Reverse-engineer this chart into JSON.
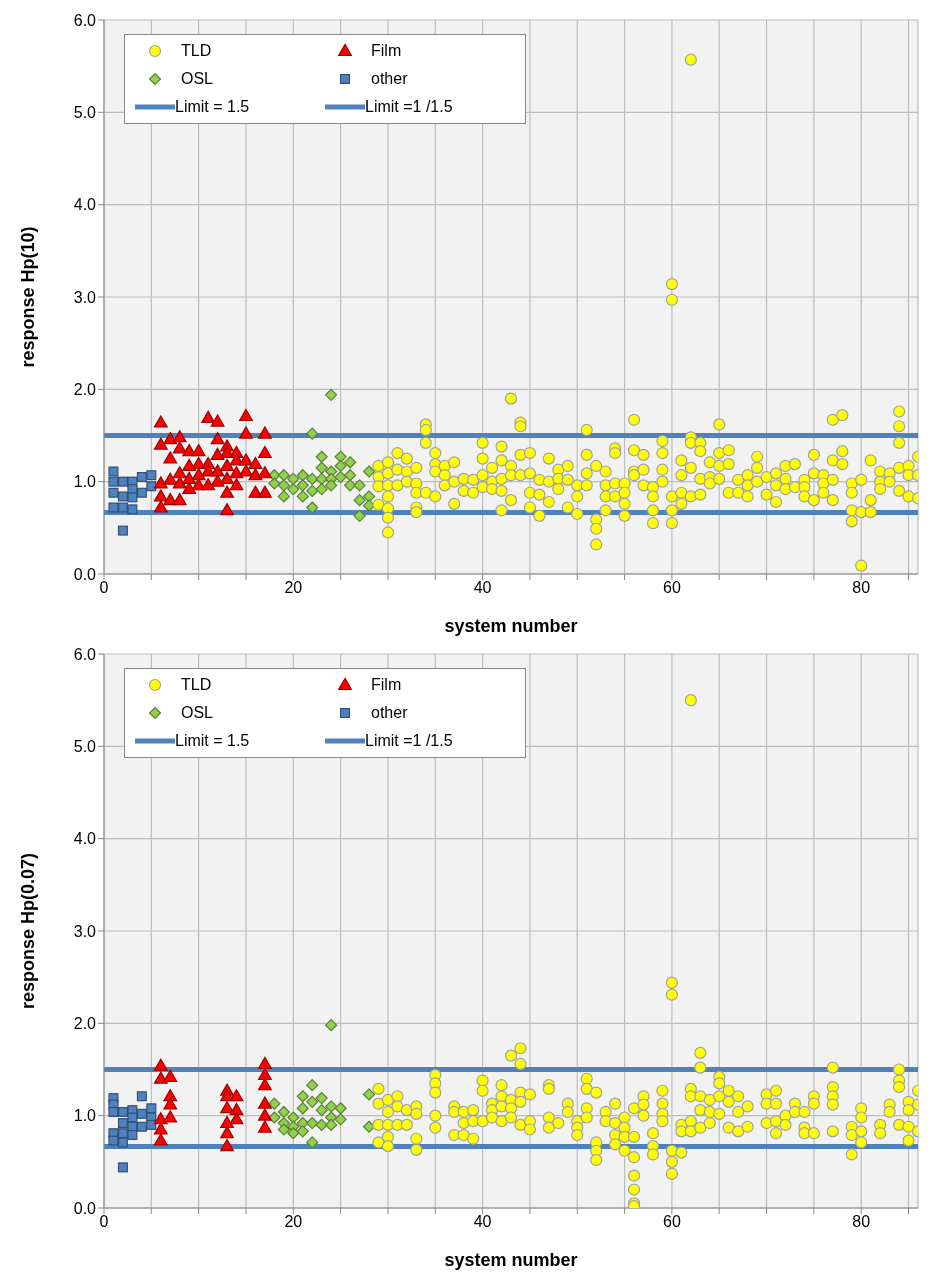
{
  "chart_data": [
    {
      "type": "scatter",
      "xlabel": "system number",
      "ylabel": "response Hp(10)",
      "xlim": [
        0,
        86
      ],
      "ylim": [
        0,
        6
      ],
      "xticks": [
        0,
        {
          "value": 5,
          "label": null
        },
        {
          "value": 10,
          "label": null
        },
        {
          "value": 15,
          "label": null
        },
        20,
        {
          "value": 25,
          "label": null
        },
        {
          "value": 30,
          "label": null
        },
        {
          "value": 35,
          "label": null
        },
        40,
        {
          "value": 45,
          "label": null
        },
        {
          "value": 50,
          "label": null
        },
        {
          "value": 55,
          "label": null
        },
        60,
        {
          "value": 65,
          "label": null
        },
        {
          "value": 70,
          "label": null
        },
        {
          "value": 75,
          "label": null
        },
        80,
        {
          "value": 85,
          "label": null
        }
      ],
      "yticks": [
        {
          "value": 0,
          "label": "0.0"
        },
        {
          "value": 1,
          "label": "1.0"
        },
        {
          "value": 2,
          "label": "2.0"
        },
        {
          "value": 3,
          "label": "3.0"
        },
        {
          "value": 4,
          "label": "4.0"
        },
        {
          "value": 5,
          "label": "5.0"
        },
        {
          "value": 6,
          "label": "6.0"
        }
      ],
      "grid": true,
      "legend": "top left",
      "ref_lines": [
        {
          "axis": "y",
          "value": 1.5,
          "label": "Limit = 1.5",
          "color": "#4f81bd"
        },
        {
          "axis": "y",
          "value": 0.667,
          "label": "Limit =1 /1.5",
          "color": "#4f81bd"
        }
      ],
      "series": [
        {
          "name": "TLD",
          "color": "#ffff00",
          "marker": "circle",
          "x": [
            29,
            29,
            29,
            29,
            30,
            30,
            30,
            30,
            30,
            30,
            30,
            31,
            31,
            31,
            32,
            32,
            32,
            33,
            33,
            33,
            33,
            33,
            34,
            34,
            34,
            34,
            35,
            35,
            35,
            35,
            36,
            36,
            36,
            37,
            37,
            37,
            38,
            38,
            39,
            39,
            40,
            40,
            40,
            40,
            41,
            41,
            41,
            42,
            42,
            42,
            42,
            42,
            43,
            43,
            43,
            43,
            44,
            44,
            44,
            44,
            45,
            45,
            45,
            45,
            46,
            46,
            46,
            47,
            47,
            47,
            48,
            48,
            48,
            49,
            49,
            49,
            50,
            50,
            50,
            51,
            51,
            51,
            51,
            52,
            52,
            52,
            52,
            53,
            53,
            53,
            53,
            54,
            54,
            54,
            54,
            55,
            55,
            55,
            55,
            56,
            56,
            56,
            56,
            57,
            57,
            57,
            58,
            58,
            58,
            58,
            59,
            59,
            59,
            59,
            60,
            60,
            60,
            60,
            60,
            61,
            61,
            61,
            61,
            62,
            62,
            62,
            62,
            62,
            63,
            63,
            63,
            63,
            64,
            64,
            64,
            65,
            65,
            65,
            65,
            66,
            66,
            66,
            67,
            67,
            68,
            68,
            68,
            69,
            69,
            69,
            70,
            70,
            71,
            71,
            71,
            72,
            72,
            72,
            73,
            73,
            74,
            74,
            74,
            75,
            75,
            75,
            76,
            76,
            76,
            77,
            77,
            77,
            77,
            78,
            78,
            78,
            79,
            79,
            79,
            79,
            80,
            80,
            80,
            81,
            81,
            81,
            82,
            82,
            82,
            83,
            83,
            84,
            84,
            84,
            84,
            84,
            85,
            85,
            85,
            86,
            86,
            86
          ],
          "values": [
            1.17,
            1.05,
            0.95,
            0.75,
            1.21,
            1.09,
            0.96,
            0.84,
            0.71,
            0.61,
            0.45,
            1.31,
            1.13,
            0.96,
            1.25,
            1.11,
            1.0,
            1.15,
            0.98,
            0.88,
            0.72,
            0.67,
            1.62,
            1.56,
            1.42,
            0.88,
            1.31,
            1.19,
            1.11,
            0.84,
            1.17,
            1.07,
            0.96,
            1.21,
            1.0,
            0.76,
            1.03,
            0.9,
            1.02,
            0.88,
            1.42,
            1.25,
            1.07,
            0.94,
            1.15,
            1.0,
            0.92,
            1.38,
            1.23,
            1.03,
            0.9,
            0.69,
            1.9,
            1.17,
            1.07,
            0.8,
            1.64,
            1.6,
            1.29,
            1.07,
            1.31,
            1.09,
            0.88,
            0.72,
            1.02,
            0.86,
            0.63,
            1.25,
            1.0,
            0.78,
            1.13,
            1.03,
            0.92,
            1.17,
            1.02,
            0.72,
            0.96,
            0.84,
            0.65,
            1.56,
            1.29,
            1.09,
            0.96,
            1.17,
            0.59,
            0.49,
            0.32,
            1.11,
            0.96,
            0.84,
            0.69,
            1.36,
            1.31,
            0.98,
            0.84,
            0.98,
            0.88,
            0.76,
            0.63,
            1.67,
            1.34,
            1.11,
            1.07,
            1.29,
            1.13,
            0.96,
            0.94,
            0.84,
            0.69,
            0.55,
            1.44,
            1.31,
            1.13,
            1.0,
            3.14,
            2.97,
            0.84,
            0.69,
            0.55,
            1.23,
            1.07,
            0.88,
            0.76,
            5.57,
            1.48,
            1.42,
            1.15,
            0.84,
            1.42,
            1.33,
            1.03,
            0.86,
            1.21,
            1.05,
            0.98,
            1.62,
            1.31,
            1.17,
            1.03,
            1.34,
            1.19,
            0.88,
            1.02,
            0.88,
            1.07,
            0.96,
            0.84,
            1.27,
            1.15,
            1.0,
            1.05,
            0.86,
            1.09,
            0.96,
            0.78,
            1.17,
            1.03,
            0.92,
            1.19,
            0.94,
            1.02,
            0.94,
            0.84,
            1.29,
            1.09,
            0.8,
            1.07,
            0.98,
            0.88,
            1.67,
            1.23,
            1.02,
            0.8,
            1.72,
            1.33,
            1.19,
            0.98,
            0.88,
            0.69,
            0.57,
            1.02,
            0.67,
            0.09,
            1.23,
            0.8,
            0.67,
            1.11,
            1.0,
            0.92,
            1.09,
            1.0,
            1.76,
            1.6,
            1.42,
            1.15,
            0.9,
            1.17,
            1.07,
            0.84,
            1.27,
            1.07,
            0.82
          ]
        },
        {
          "name": "Film",
          "color": "#ff0000",
          "marker": "triangle",
          "x": [
            6,
            6,
            6,
            6,
            6,
            7,
            7,
            7,
            7,
            8,
            8,
            8,
            8,
            8,
            9,
            9,
            9,
            9,
            10,
            10,
            10,
            10,
            11,
            11,
            11,
            11,
            12,
            12,
            12,
            12,
            12,
            13,
            13,
            13,
            13,
            13,
            13,
            14,
            14,
            14,
            14,
            15,
            15,
            15,
            15,
            16,
            16,
            16,
            17,
            17,
            17,
            17
          ],
          "values": [
            1.64,
            1.4,
            0.98,
            0.84,
            0.72,
            1.46,
            1.25,
            1.02,
            0.8,
            1.48,
            1.36,
            1.09,
            0.98,
            0.8,
            1.33,
            1.17,
            1.03,
            0.92,
            1.33,
            1.19,
            1.07,
            0.96,
            1.69,
            1.19,
            1.11,
            0.96,
            1.65,
            1.46,
            1.29,
            1.11,
            1.0,
            1.38,
            1.31,
            1.17,
            1.03,
            0.88,
            0.69,
            1.31,
            1.23,
            1.09,
            0.96,
            1.71,
            1.52,
            1.23,
            1.11,
            1.19,
            1.07,
            0.88,
            1.52,
            1.31,
            1.09,
            0.88
          ]
        },
        {
          "name": "OSL",
          "color": "#92d050",
          "marker": "diamond",
          "x": [
            18,
            18,
            19,
            19,
            19,
            20,
            20,
            21,
            21,
            21,
            22,
            22,
            22,
            22,
            23,
            23,
            23,
            23,
            24,
            24,
            24,
            24,
            25,
            25,
            25,
            26,
            26,
            26,
            27,
            27,
            27,
            28,
            28,
            28
          ],
          "values": [
            1.07,
            0.98,
            1.07,
            0.96,
            0.84,
            1.03,
            0.92,
            1.07,
            0.96,
            0.84,
            1.52,
            1.03,
            0.9,
            0.72,
            1.27,
            1.15,
            1.03,
            0.92,
            1.94,
            1.11,
            1.03,
            0.96,
            1.27,
            1.17,
            1.05,
            1.21,
            1.07,
            0.96,
            0.96,
            0.8,
            0.63,
            1.11,
            0.84,
            0.74
          ]
        },
        {
          "name": "other",
          "color": "#4f81bd",
          "marker": "square",
          "x": [
            1,
            1,
            1,
            1,
            2,
            2,
            2,
            2,
            3,
            3,
            3,
            3,
            4,
            4,
            5,
            5
          ],
          "values": [
            1.11,
            1.0,
            0.88,
            0.72,
            1.0,
            0.84,
            0.72,
            0.47,
            1.0,
            0.92,
            0.83,
            0.7,
            1.05,
            0.88,
            1.07,
            0.95
          ]
        }
      ]
    },
    {
      "type": "scatter",
      "xlabel": "system number",
      "ylabel": "response Hp(0.07)",
      "xlim": [
        0,
        86
      ],
      "ylim": [
        0,
        6
      ],
      "xticks": [
        0,
        {
          "value": 5,
          "label": null
        },
        {
          "value": 10,
          "label": null
        },
        {
          "value": 15,
          "label": null
        },
        20,
        {
          "value": 25,
          "label": null
        },
        {
          "value": 30,
          "label": null
        },
        {
          "value": 35,
          "label": null
        },
        40,
        {
          "value": 45,
          "label": null
        },
        {
          "value": 50,
          "label": null
        },
        {
          "value": 55,
          "label": null
        },
        60,
        {
          "value": 65,
          "label": null
        },
        {
          "value": 70,
          "label": null
        },
        {
          "value": 75,
          "label": null
        },
        80,
        {
          "value": 85,
          "label": null
        }
      ],
      "yticks": [
        {
          "value": 0,
          "label": "0.0"
        },
        {
          "value": 1,
          "label": "1.0"
        },
        {
          "value": 2,
          "label": "2.0"
        },
        {
          "value": 3,
          "label": "3.0"
        },
        {
          "value": 4,
          "label": "4.0"
        },
        {
          "value": 5,
          "label": "5.0"
        },
        {
          "value": 6,
          "label": "6.0"
        }
      ],
      "grid": true,
      "legend": "top left",
      "ref_lines": [
        {
          "axis": "y",
          "value": 1.5,
          "label": "Limit = 1.5",
          "color": "#4f81bd"
        },
        {
          "axis": "y",
          "value": 0.667,
          "label": "Limit =1 /1.5",
          "color": "#4f81bd"
        }
      ],
      "series": [
        {
          "name": "TLD",
          "color": "#ffff00",
          "marker": "circle",
          "x": [
            29,
            29,
            29,
            29,
            30,
            30,
            30,
            30,
            30,
            31,
            31,
            31,
            32,
            32,
            33,
            33,
            33,
            33,
            35,
            35,
            35,
            35,
            35,
            37,
            37,
            37,
            38,
            38,
            38,
            39,
            39,
            39,
            40,
            40,
            40,
            41,
            41,
            41,
            42,
            42,
            42,
            42,
            43,
            43,
            43,
            43,
            44,
            44,
            44,
            44,
            44,
            45,
            45,
            45,
            47,
            47,
            47,
            47,
            48,
            49,
            49,
            50,
            50,
            50,
            51,
            51,
            51,
            51,
            52,
            52,
            52,
            52,
            53,
            53,
            54,
            54,
            54,
            54,
            55,
            55,
            55,
            55,
            56,
            56,
            56,
            56,
            56,
            56,
            56,
            57,
            57,
            57,
            58,
            58,
            58,
            59,
            59,
            59,
            59,
            60,
            60,
            60,
            60,
            60,
            61,
            61,
            61,
            62,
            62,
            62,
            62,
            62,
            63,
            63,
            63,
            63,
            63,
            64,
            64,
            64,
            65,
            65,
            65,
            65,
            66,
            66,
            66,
            67,
            67,
            67,
            68,
            68,
            70,
            70,
            70,
            71,
            71,
            71,
            71,
            72,
            72,
            73,
            73,
            74,
            74,
            74,
            75,
            75,
            75,
            77,
            77,
            77,
            77,
            77,
            79,
            79,
            79,
            80,
            80,
            80,
            80,
            82,
            82,
            83,
            83,
            84,
            84,
            84,
            84,
            85,
            85,
            85,
            85,
            86,
            86,
            86
          ],
          "values": [
            1.29,
            1.13,
            0.9,
            0.71,
            1.17,
            1.04,
            0.9,
            0.77,
            0.67,
            1.21,
            1.1,
            0.9,
            1.06,
            0.9,
            1.1,
            1.02,
            0.75,
            0.63,
            1.44,
            1.35,
            1.25,
            1.0,
            0.87,
            1.1,
            1.04,
            0.79,
            1.04,
            0.92,
            0.79,
            1.06,
            0.94,
            0.75,
            1.38,
            1.27,
            0.94,
            1.13,
            1.06,
            0.98,
            1.33,
            1.21,
            1.1,
            0.94,
            1.65,
            1.17,
            1.08,
            0.98,
            1.73,
            1.56,
            1.25,
            1.15,
            0.9,
            1.23,
            0.94,
            0.85,
            1.33,
            1.29,
            0.98,
            0.87,
            0.92,
            1.13,
            1.04,
            0.94,
            0.87,
            0.79,
            1.4,
            1.29,
            1.08,
            0.98,
            1.25,
            0.71,
            0.62,
            0.52,
            1.04,
            0.94,
            1.13,
            0.92,
            0.79,
            0.69,
            0.98,
            0.87,
            0.77,
            0.62,
            1.08,
            0.77,
            0.55,
            0.35,
            0.2,
            0.05,
            0.02,
            1.21,
            1.12,
            1.0,
            0.81,
            0.67,
            0.58,
            1.27,
            1.13,
            1.02,
            0.94,
            2.44,
            2.31,
            0.62,
            0.5,
            0.37,
            0.9,
            0.83,
            0.6,
            5.5,
            1.29,
            1.21,
            0.94,
            0.83,
            1.68,
            1.52,
            1.21,
            1.06,
            0.87,
            1.17,
            1.04,
            0.92,
            1.42,
            1.35,
            1.21,
            1.02,
            1.27,
            1.15,
            0.87,
            1.21,
            1.04,
            0.83,
            1.1,
            0.88,
            1.23,
            1.13,
            0.92,
            1.27,
            1.13,
            0.94,
            0.81,
            1.0,
            0.9,
            1.13,
            1.04,
            1.04,
            0.87,
            0.81,
            1.21,
            1.13,
            0.81,
            1.52,
            1.31,
            1.21,
            1.12,
            0.83,
            0.88,
            0.79,
            0.58,
            1.08,
            0.98,
            0.83,
            0.71,
            0.9,
            0.81,
            1.12,
            1.04,
            1.5,
            1.38,
            1.31,
            0.9,
            1.15,
            1.06,
            0.88,
            0.73,
            1.27,
            1.12,
            0.83
          ]
        },
        {
          "name": "Film",
          "color": "#ff0000",
          "marker": "triangle",
          "x": [
            6,
            6,
            6,
            6,
            6,
            7,
            7,
            7,
            7,
            13,
            13,
            13,
            13,
            13,
            13,
            14,
            14,
            14,
            17,
            17,
            17,
            17,
            17,
            17
          ],
          "values": [
            1.54,
            1.4,
            0.96,
            0.85,
            0.73,
            1.42,
            1.21,
            1.12,
            0.98,
            1.27,
            1.21,
            1.08,
            0.92,
            0.81,
            0.67,
            1.21,
            1.06,
            0.96,
            1.56,
            1.44,
            1.33,
            1.13,
            1.0,
            0.87
          ]
        },
        {
          "name": "OSL",
          "color": "#92d050",
          "marker": "diamond",
          "x": [
            18,
            18,
            19,
            19,
            19,
            20,
            20,
            20,
            21,
            21,
            21,
            21,
            22,
            22,
            22,
            22,
            23,
            23,
            23,
            24,
            24,
            24,
            24,
            25,
            25,
            28,
            28
          ],
          "values": [
            1.13,
            0.98,
            1.04,
            0.92,
            0.85,
            0.98,
            0.88,
            0.81,
            1.21,
            1.08,
            0.92,
            0.83,
            1.33,
            1.15,
            0.92,
            0.71,
            1.19,
            1.06,
            0.9,
            1.98,
            1.1,
            0.98,
            0.9,
            1.08,
            0.96,
            1.23,
            0.88
          ]
        },
        {
          "name": "other",
          "color": "#4f81bd",
          "marker": "square",
          "x": [
            1,
            1,
            1,
            1,
            1,
            2,
            2,
            2,
            2,
            2,
            3,
            3,
            3,
            3,
            4,
            4,
            4,
            5,
            5,
            5
          ],
          "values": [
            1.19,
            1.12,
            1.04,
            0.81,
            0.73,
            1.04,
            0.92,
            0.81,
            0.71,
            0.44,
            1.06,
            0.98,
            0.88,
            0.79,
            1.21,
            1.02,
            0.88,
            1.08,
            0.98,
            0.9
          ]
        }
      ]
    }
  ]
}
